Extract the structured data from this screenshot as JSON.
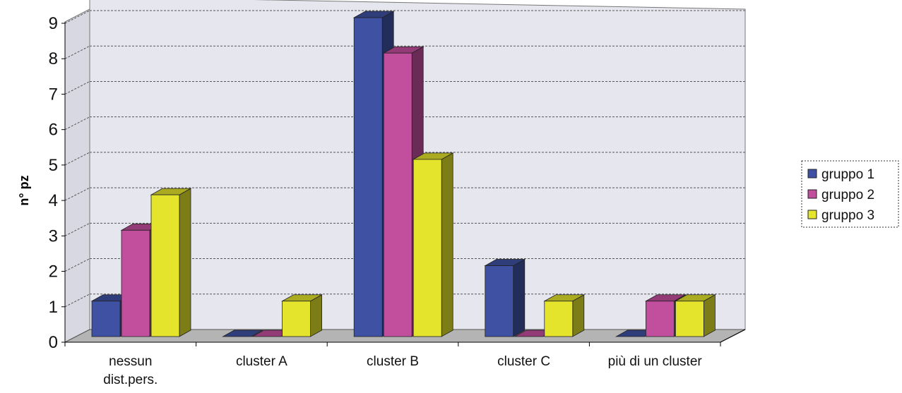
{
  "chart_data": {
    "type": "bar3d",
    "y_label": "n° pz",
    "categories": [
      "nessun dist.pers.",
      "cluster A",
      "cluster B",
      "cluster C",
      "più di un cluster"
    ],
    "series": [
      {
        "name": "gruppo 1",
        "color": "#3f51a3",
        "values": [
          1,
          0,
          9,
          2,
          0
        ]
      },
      {
        "name": "gruppo 2",
        "color": "#c24f9e",
        "values": [
          3,
          0,
          8,
          0,
          1
        ]
      },
      {
        "name": "gruppo 3",
        "color": "#e4e42c",
        "values": [
          4,
          1,
          5,
          1,
          1
        ]
      }
    ],
    "ylim": [
      0,
      9
    ],
    "yticks": [
      0,
      1,
      2,
      3,
      4,
      5,
      6,
      7,
      8,
      9
    ],
    "grid": true,
    "legend": "right"
  }
}
